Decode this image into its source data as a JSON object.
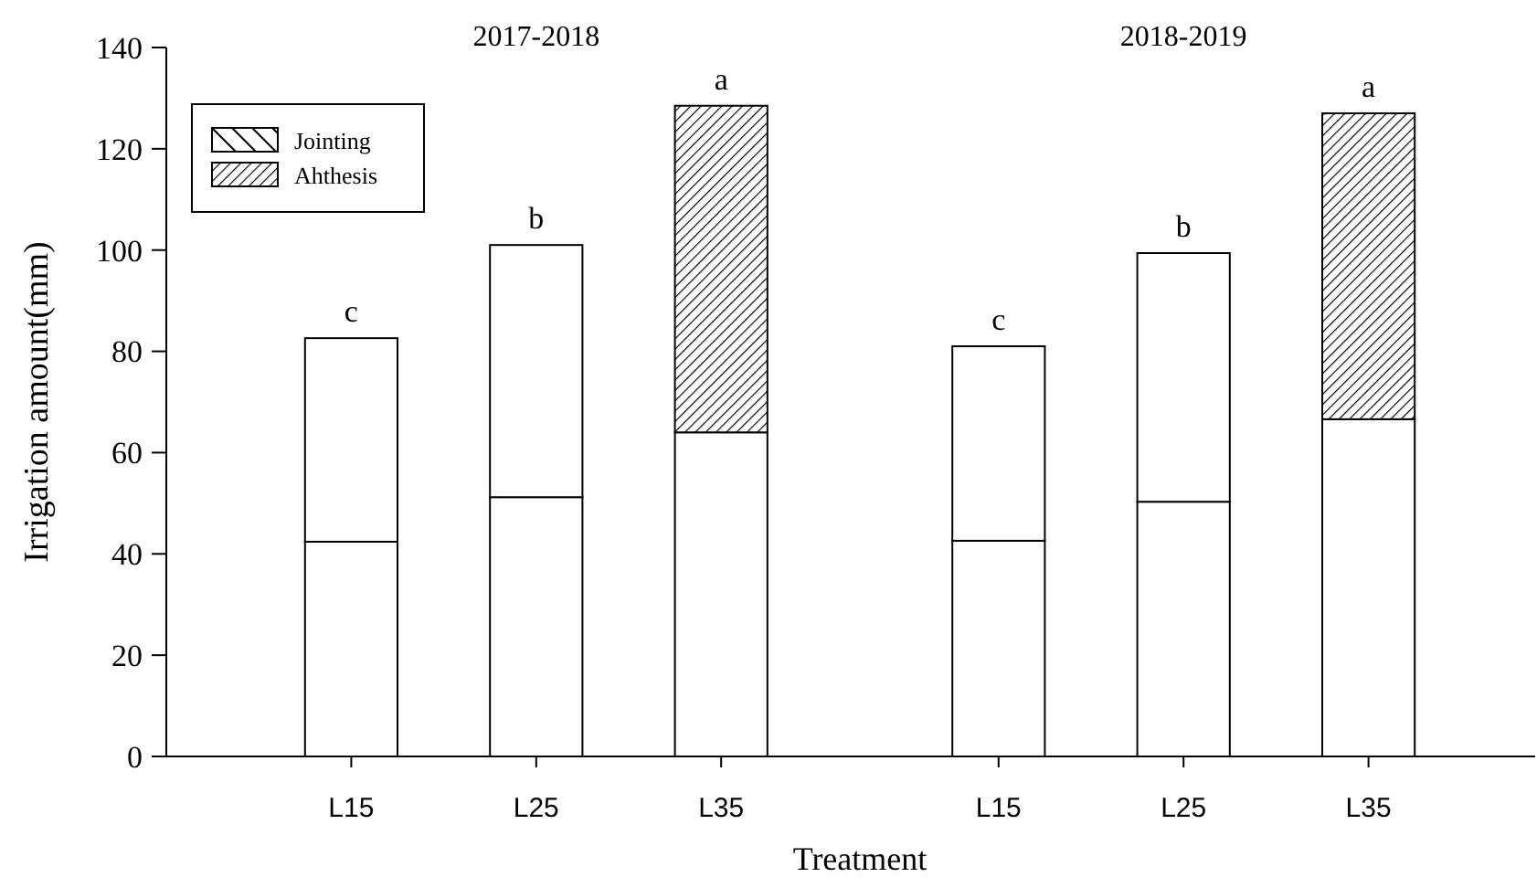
{
  "chart_data": {
    "type": "bar",
    "stacked": true,
    "xlabel": "Treatment",
    "ylabel": "Irrigation amount(mm)",
    "categories": [
      null,
      "L15",
      null,
      "L25",
      null,
      "L35",
      null,
      null,
      "L15",
      null,
      "L25",
      null,
      "L35",
      null
    ],
    "series": [
      {
        "name": "Jointing",
        "color": "#ffffff",
        "values": [
          null,
          42.4,
          null,
          51.2,
          null,
          64.0,
          null,
          null,
          42.6,
          null,
          50.3,
          null,
          66.6,
          null
        ]
      },
      {
        "name": "Ahthesis",
        "color": "#000000",
        "colors": [
          null,
          "#ffffff",
          null,
          "#ffffff",
          null,
          "#000000",
          null,
          null,
          "#ffffff",
          null,
          "#ffffff",
          null,
          "#000000",
          null
        ],
        "values": [
          null,
          40.2,
          null,
          49.8,
          null,
          64.5,
          null,
          null,
          38.4,
          null,
          49.1,
          null,
          60.4,
          null
        ],
        "value_labels": [
          null,
          "c",
          null,
          "b",
          null,
          "a",
          null,
          null,
          "c",
          null,
          "b",
          null,
          "a",
          null
        ]
      }
    ],
    "annotations": [
      "2017-2018",
      "2018-2019"
    ],
    "ylim": [
      0,
      140
    ],
    "yticks": [
      0,
      20,
      40,
      60,
      80,
      100,
      120,
      140
    ],
    "legend": "top left",
    "grid": false
  }
}
